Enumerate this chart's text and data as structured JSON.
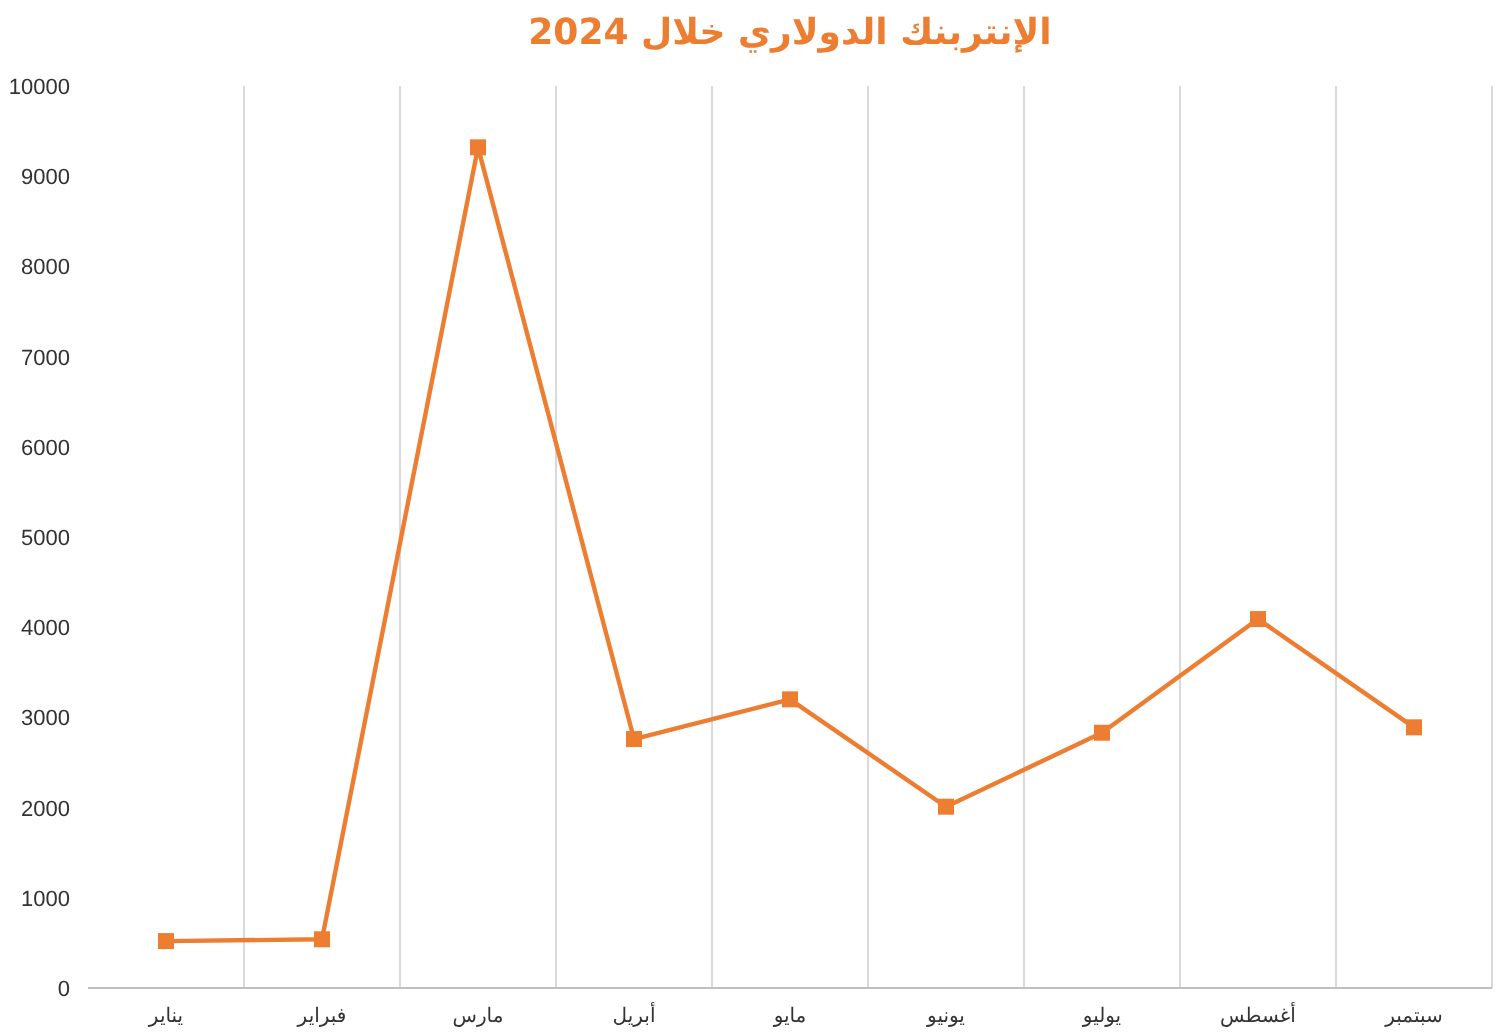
{
  "chart_data": {
    "type": "line",
    "title": "الإنتربنك الدولاري خلال 2024",
    "categories": [
      "يناير",
      "فبراير",
      "مارس",
      "أبريل",
      "مايو",
      "يونيو",
      "يوليو",
      "أغسطس",
      "سبتمبر"
    ],
    "values": [
      520,
      540,
      9320,
      2760,
      3200,
      2010,
      2830,
      4090,
      2890
    ],
    "color": "#ed7d31",
    "marker": "square",
    "grid": "x",
    "ylim": [
      0,
      10000
    ],
    "yticks": [
      0,
      1000,
      2000,
      3000,
      4000,
      5000,
      6000,
      7000,
      8000,
      9000,
      10000
    ]
  }
}
